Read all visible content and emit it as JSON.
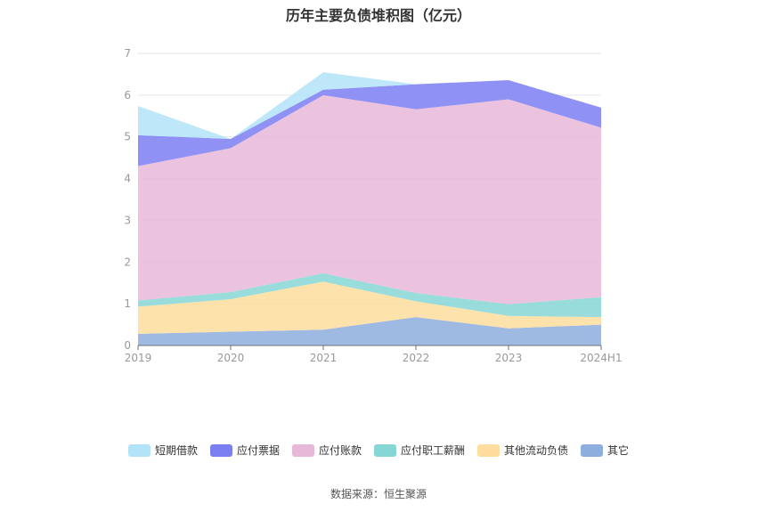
{
  "title": "历年主要负债堆积图（亿元）",
  "source_text": "数据来源：恒生聚源",
  "chart_data": {
    "type": "area",
    "stacked": true,
    "categories": [
      "2019",
      "2020",
      "2021",
      "2022",
      "2023",
      "2024H1"
    ],
    "ylim": [
      0,
      7
    ],
    "yticks": [
      0,
      1,
      2,
      3,
      4,
      5,
      6,
      7
    ],
    "grid": true,
    "legend_position": "bottom",
    "series": [
      {
        "name": "其它",
        "color": "#8eaedd",
        "values": [
          0.28,
          0.33,
          0.38,
          0.68,
          0.41,
          0.5
        ]
      },
      {
        "name": "其他流动负债",
        "color": "#fedd9e",
        "values": [
          0.65,
          0.78,
          1.15,
          0.38,
          0.3,
          0.18
        ]
      },
      {
        "name": "应付职工薪酬",
        "color": "#87d6d6",
        "values": [
          0.15,
          0.17,
          0.2,
          0.2,
          0.28,
          0.48
        ]
      },
      {
        "name": "应付账款",
        "color": "#e8b8d8",
        "values": [
          3.22,
          3.45,
          4.27,
          4.4,
          4.91,
          4.06
        ]
      },
      {
        "name": "应付票据",
        "color": "#7b7ff2",
        "values": [
          0.74,
          0.22,
          0.13,
          0.6,
          0.46,
          0.48
        ]
      },
      {
        "name": "短期借款",
        "color": "#b3e3f8",
        "values": [
          0.7,
          0.0,
          0.42,
          0.0,
          0.0,
          0.0
        ]
      }
    ]
  }
}
